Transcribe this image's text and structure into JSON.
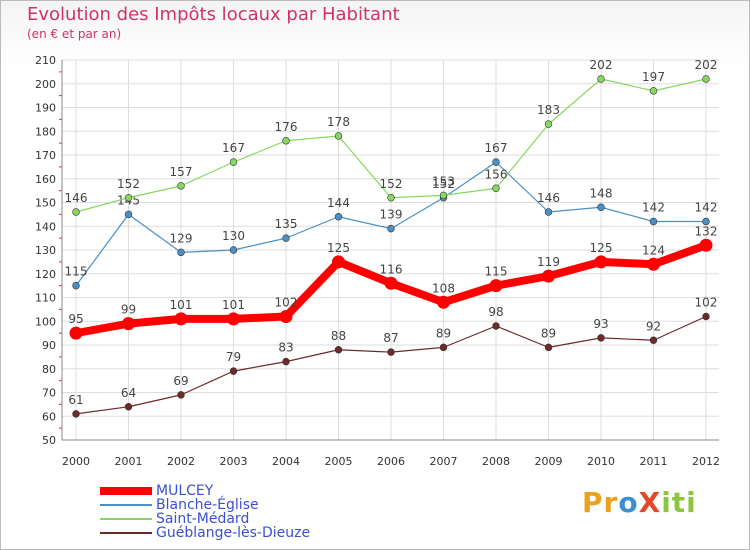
{
  "title": "Evolution des Impôts locaux par Habitant",
  "subtitle": "(en € et par an)",
  "logo": "ProXiti",
  "chart_data": {
    "type": "line",
    "title": "Evolution des Impôts locaux par Habitant",
    "subtitle": "(en € et par an)",
    "xlabel": "",
    "ylabel": "",
    "x": [
      "2000",
      "2001",
      "2002",
      "2003",
      "2004",
      "2005",
      "2006",
      "2007",
      "2008",
      "2009",
      "2010",
      "2011",
      "2012"
    ],
    "ylim": [
      50,
      210
    ],
    "yticks": [
      50,
      60,
      70,
      80,
      90,
      100,
      110,
      120,
      130,
      140,
      150,
      160,
      170,
      180,
      190,
      200,
      210
    ],
    "grid": true,
    "legend": "bottom-left",
    "series": [
      {
        "name": "MULCEY",
        "color": "#ff0000",
        "values": [
          95,
          99,
          101,
          101,
          102,
          125,
          116,
          108,
          115,
          119,
          125,
          124,
          132
        ]
      },
      {
        "name": "Blanche-Église",
        "color": "#4a90c8",
        "values": [
          115,
          145,
          129,
          130,
          135,
          144,
          139,
          152,
          167,
          146,
          148,
          142,
          142
        ]
      },
      {
        "name": "Saint-Médard",
        "color": "#88d860",
        "values": [
          146,
          152,
          157,
          167,
          176,
          178,
          152,
          153,
          156,
          183,
          202,
          197,
          202
        ]
      },
      {
        "name": "Guéblange-lès-Dieuze",
        "color": "#6e2a2a",
        "values": [
          61,
          64,
          69,
          79,
          83,
          88,
          87,
          89,
          98,
          89,
          93,
          92,
          102
        ]
      }
    ]
  }
}
